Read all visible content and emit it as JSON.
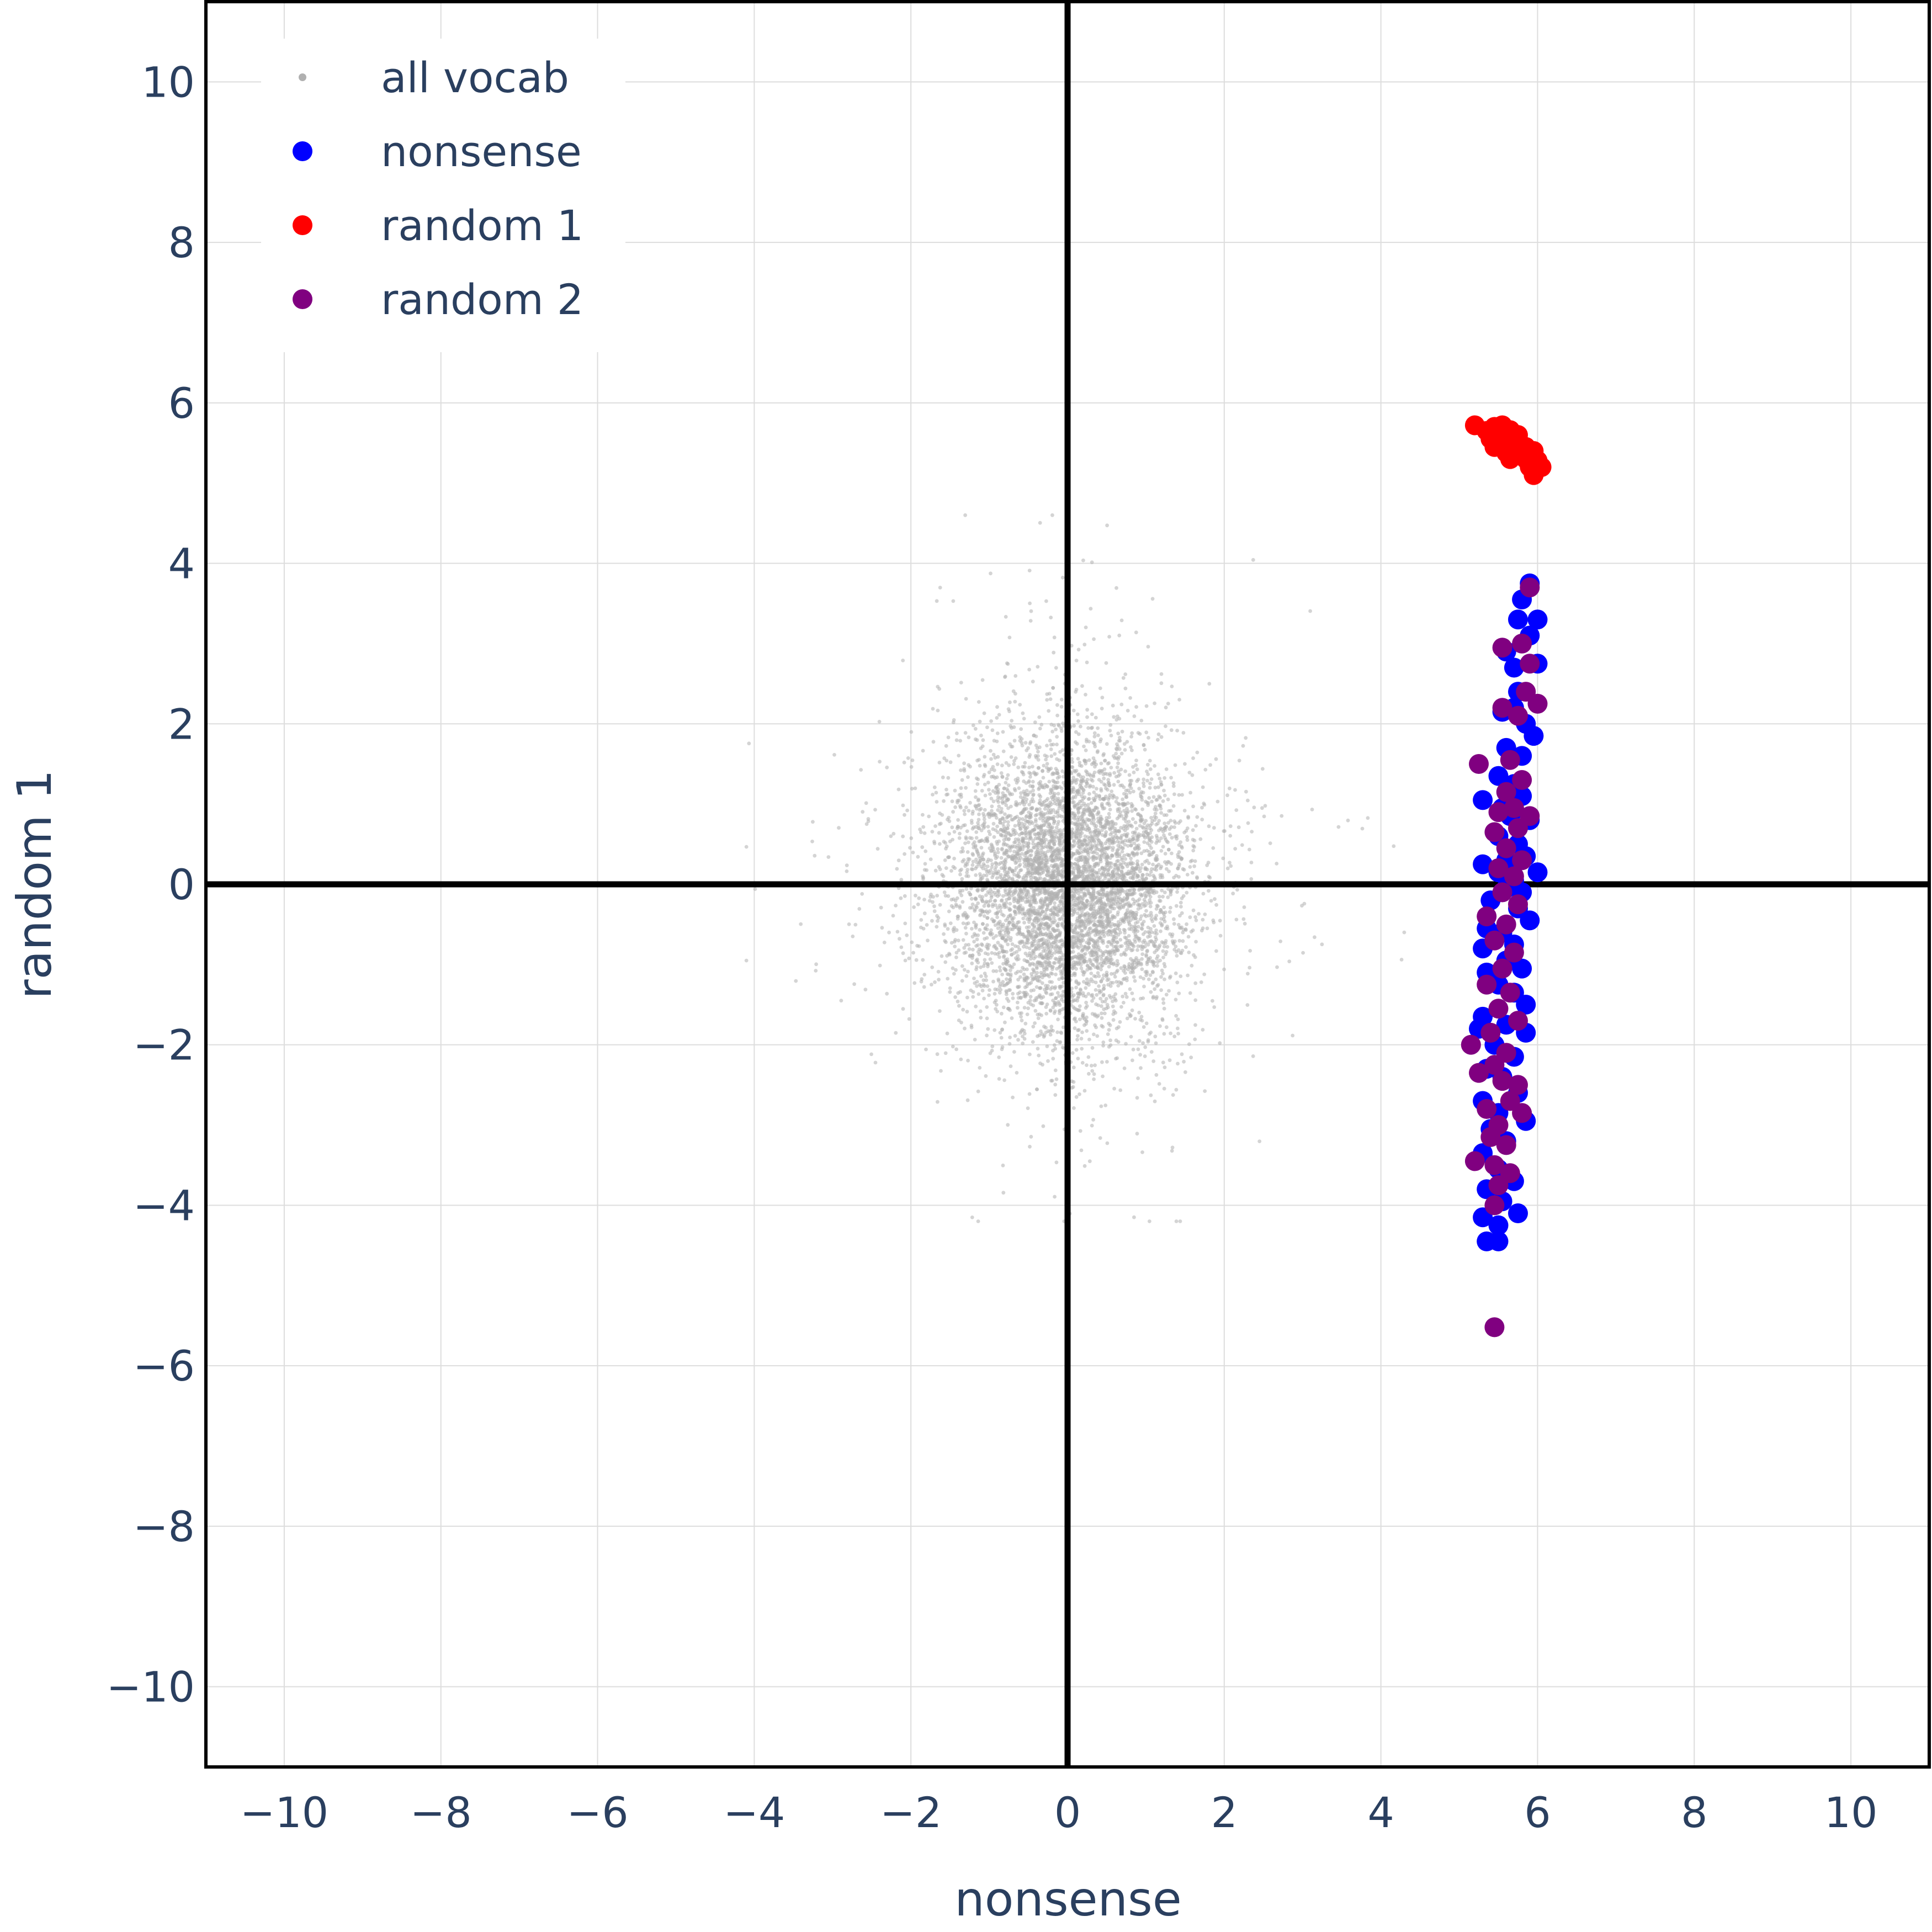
{
  "chart_data": {
    "type": "scatter",
    "xlabel": "nonsense",
    "ylabel": "random 1",
    "xlim": [
      -11,
      11
    ],
    "ylim": [
      -11,
      11
    ],
    "xticks": [
      -10,
      -8,
      -6,
      -4,
      -2,
      0,
      2,
      4,
      6,
      8,
      10
    ],
    "yticks": [
      -10,
      -8,
      -6,
      -4,
      -2,
      0,
      2,
      4,
      6,
      8,
      10
    ],
    "xtick_labels": [
      "−10",
      "−8",
      "−6",
      "−4",
      "−2",
      "0",
      "2",
      "4",
      "6",
      "8",
      "10"
    ],
    "ytick_labels": [
      "−10",
      "−8",
      "−6",
      "−4",
      "−2",
      "0",
      "2",
      "4",
      "6",
      "8",
      "10"
    ],
    "grid": true,
    "zero_lines": true,
    "legend_position": "top-left",
    "series": [
      {
        "name": "all vocab",
        "color": "#b0b0b0",
        "marker": "small-dot",
        "distribution": {
          "center": [
            0,
            0
          ],
          "std": [
            0.75,
            0.9
          ],
          "approx_count": 6000,
          "x_range": [
            -4.1,
            7.2
          ],
          "y_range": [
            -4.2,
            4.6
          ]
        }
      },
      {
        "name": "nonsense",
        "color": "#0000ff",
        "marker": "circle",
        "points": [
          [
            5.9,
            3.75
          ],
          [
            5.8,
            3.55
          ],
          [
            5.75,
            3.3
          ],
          [
            6.0,
            3.3
          ],
          [
            5.9,
            3.1
          ],
          [
            5.6,
            2.9
          ],
          [
            5.7,
            2.7
          ],
          [
            6.0,
            2.75
          ],
          [
            5.75,
            2.4
          ],
          [
            5.55,
            2.15
          ],
          [
            5.7,
            2.2
          ],
          [
            5.85,
            2.0
          ],
          [
            5.95,
            1.85
          ],
          [
            5.6,
            1.7
          ],
          [
            5.8,
            1.6
          ],
          [
            5.5,
            1.35
          ],
          [
            5.7,
            1.25
          ],
          [
            5.8,
            1.1
          ],
          [
            5.3,
            1.05
          ],
          [
            5.55,
            0.95
          ],
          [
            5.65,
            0.85
          ],
          [
            5.9,
            0.8
          ],
          [
            5.5,
            0.6
          ],
          [
            5.75,
            0.5
          ],
          [
            5.85,
            0.35
          ],
          [
            5.6,
            0.3
          ],
          [
            5.3,
            0.25
          ],
          [
            5.5,
            0.15
          ],
          [
            6.0,
            0.15
          ],
          [
            5.7,
            0.05
          ],
          [
            5.6,
            -0.05
          ],
          [
            5.8,
            -0.1
          ],
          [
            5.4,
            -0.2
          ],
          [
            5.75,
            -0.3
          ],
          [
            5.9,
            -0.45
          ],
          [
            5.35,
            -0.55
          ],
          [
            5.55,
            -0.6
          ],
          [
            5.7,
            -0.75
          ],
          [
            5.3,
            -0.8
          ],
          [
            5.6,
            -0.95
          ],
          [
            5.8,
            -1.05
          ],
          [
            5.35,
            -1.1
          ],
          [
            5.5,
            -1.25
          ],
          [
            5.7,
            -1.35
          ],
          [
            5.85,
            -1.5
          ],
          [
            5.3,
            -1.65
          ],
          [
            5.6,
            -1.75
          ],
          [
            5.25,
            -1.8
          ],
          [
            5.85,
            -1.85
          ],
          [
            5.45,
            -2.0
          ],
          [
            5.7,
            -2.15
          ],
          [
            5.35,
            -2.3
          ],
          [
            5.55,
            -2.4
          ],
          [
            5.75,
            -2.6
          ],
          [
            5.3,
            -2.7
          ],
          [
            5.5,
            -2.85
          ],
          [
            5.85,
            -2.95
          ],
          [
            5.4,
            -3.05
          ],
          [
            5.6,
            -3.2
          ],
          [
            5.3,
            -3.35
          ],
          [
            5.5,
            -3.55
          ],
          [
            5.7,
            -3.7
          ],
          [
            5.35,
            -3.8
          ],
          [
            5.55,
            -3.95
          ],
          [
            5.75,
            -4.1
          ],
          [
            5.3,
            -4.15
          ],
          [
            5.5,
            -4.25
          ],
          [
            5.35,
            -4.45
          ],
          [
            5.5,
            -4.45
          ]
        ]
      },
      {
        "name": "random 1",
        "color": "#ff0000",
        "marker": "circle",
        "points": [
          [
            5.2,
            5.72
          ],
          [
            5.35,
            5.65
          ],
          [
            5.45,
            5.7
          ],
          [
            5.55,
            5.72
          ],
          [
            5.65,
            5.66
          ],
          [
            5.4,
            5.55
          ],
          [
            5.5,
            5.6
          ],
          [
            5.6,
            5.58
          ],
          [
            5.75,
            5.6
          ],
          [
            5.45,
            5.45
          ],
          [
            5.55,
            5.5
          ],
          [
            5.7,
            5.48
          ],
          [
            5.85,
            5.45
          ],
          [
            5.6,
            5.38
          ],
          [
            5.75,
            5.36
          ],
          [
            5.95,
            5.4
          ],
          [
            5.65,
            5.3
          ],
          [
            5.85,
            5.3
          ],
          [
            6.0,
            5.28
          ],
          [
            5.9,
            5.2
          ],
          [
            6.05,
            5.2
          ],
          [
            5.95,
            5.1
          ]
        ]
      },
      {
        "name": "random 2",
        "color": "#800080",
        "marker": "circle",
        "points": [
          [
            5.9,
            3.7
          ],
          [
            5.8,
            3.0
          ],
          [
            5.55,
            2.95
          ],
          [
            5.9,
            2.75
          ],
          [
            5.85,
            2.4
          ],
          [
            6.0,
            2.25
          ],
          [
            5.55,
            2.2
          ],
          [
            5.75,
            2.1
          ],
          [
            5.25,
            1.5
          ],
          [
            5.65,
            1.55
          ],
          [
            5.8,
            1.3
          ],
          [
            5.6,
            1.15
          ],
          [
            5.7,
            0.95
          ],
          [
            5.5,
            0.9
          ],
          [
            5.9,
            0.85
          ],
          [
            5.75,
            0.7
          ],
          [
            5.45,
            0.65
          ],
          [
            5.6,
            0.45
          ],
          [
            5.8,
            0.3
          ],
          [
            5.5,
            0.2
          ],
          [
            5.7,
            0.1
          ],
          [
            5.55,
            -0.1
          ],
          [
            5.75,
            -0.25
          ],
          [
            5.35,
            -0.4
          ],
          [
            5.6,
            -0.5
          ],
          [
            5.45,
            -0.7
          ],
          [
            5.7,
            -0.85
          ],
          [
            5.55,
            -1.05
          ],
          [
            5.35,
            -1.25
          ],
          [
            5.65,
            -1.35
          ],
          [
            5.5,
            -1.55
          ],
          [
            5.75,
            -1.7
          ],
          [
            5.4,
            -1.85
          ],
          [
            5.15,
            -2.0
          ],
          [
            5.6,
            -2.1
          ],
          [
            5.45,
            -2.25
          ],
          [
            5.25,
            -2.35
          ],
          [
            5.55,
            -2.45
          ],
          [
            5.75,
            -2.5
          ],
          [
            5.65,
            -2.7
          ],
          [
            5.35,
            -2.8
          ],
          [
            5.8,
            -2.85
          ],
          [
            5.5,
            -3.0
          ],
          [
            5.4,
            -3.15
          ],
          [
            5.6,
            -3.25
          ],
          [
            5.2,
            -3.45
          ],
          [
            5.45,
            -3.5
          ],
          [
            5.65,
            -3.6
          ],
          [
            5.5,
            -3.75
          ],
          [
            5.45,
            -4.0
          ],
          [
            5.45,
            -5.52
          ]
        ]
      }
    ]
  }
}
